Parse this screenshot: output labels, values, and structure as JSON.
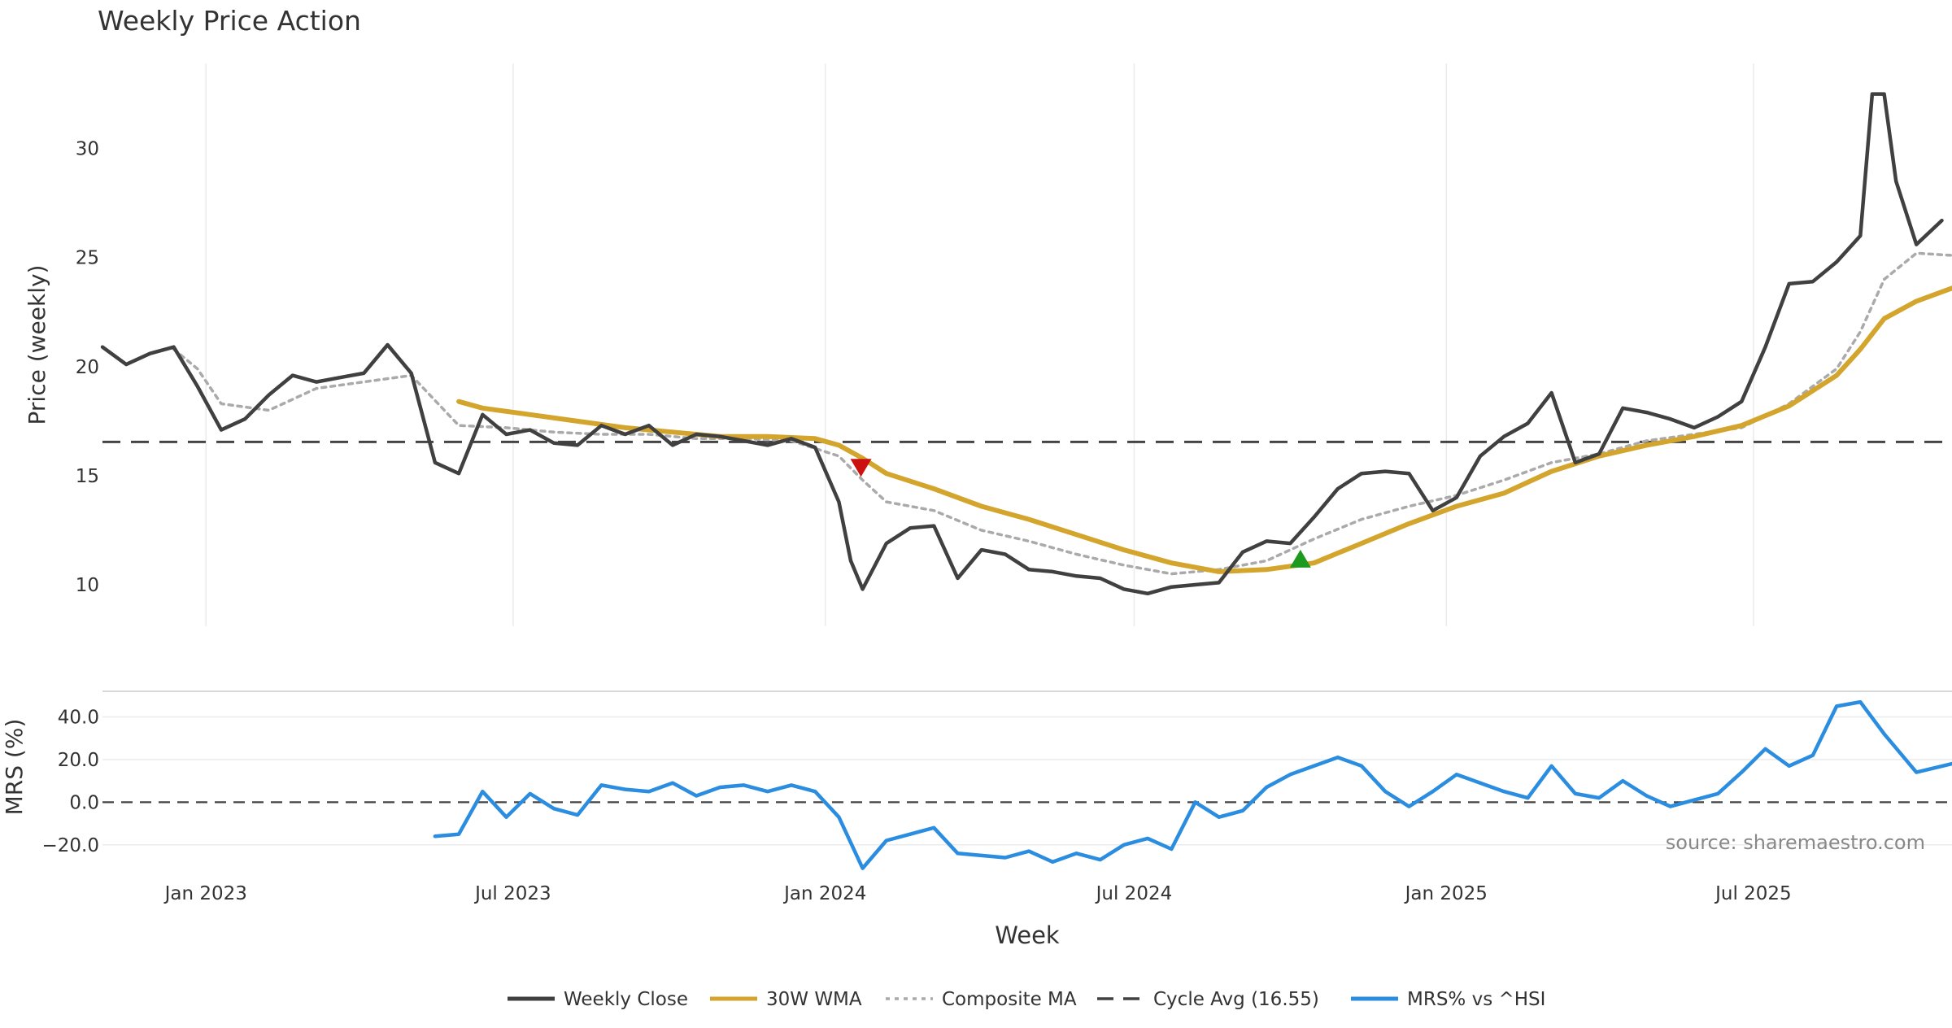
{
  "chart_data": {
    "type": "line",
    "title": "Weekly Price Action",
    "xlabel": "Week",
    "source": "source: sharemaestro.com",
    "x_ticks": [
      "Jan 2023",
      "Jul 2023",
      "Jan 2024",
      "Jul 2024",
      "Jan 2025",
      "Jul 2025"
    ],
    "x_tick_dates": [
      "2023-01-01",
      "2023-07-01",
      "2024-01-01",
      "2024-07-01",
      "2025-01-01",
      "2025-07-01"
    ],
    "x_range": [
      "2022-11-01",
      "2025-10-26"
    ],
    "price_panel": {
      "ylabel": "Price (weekly)",
      "yticks": [
        10,
        15,
        20,
        25,
        30
      ],
      "ylim": [
        8.1,
        33.9
      ],
      "grid": "x"
    },
    "mrs_panel": {
      "ylabel": "MRS (%)",
      "yticks": [
        40,
        20,
        0,
        -20
      ],
      "ytick_labels": [
        "40.0",
        "20.0",
        "0.0",
        "−20.0"
      ],
      "ylim": [
        -30,
        52
      ],
      "grid": "y"
    },
    "legend": {
      "placement": "bottom-center",
      "items": [
        {
          "label": "Weekly Close",
          "color": "#404040",
          "style": "solid"
        },
        {
          "label": "30W WMA",
          "color": "#d4a52c",
          "style": "solid"
        },
        {
          "label": "Composite MA",
          "color": "#aaaaaa",
          "style": "dotted"
        },
        {
          "label": "Cycle Avg (16.55)",
          "color": "#404040",
          "style": "dashed"
        },
        {
          "label": "MRS% vs ^HSI",
          "color": "#2b8de0",
          "style": "solid"
        }
      ]
    },
    "cycle_avg": 16.55,
    "markers": [
      {
        "type": "sell",
        "date": "2024-01-22",
        "value": 15.4,
        "color": "#cc1111"
      },
      {
        "type": "buy",
        "date": "2024-10-07",
        "value": 11.2,
        "color": "#1e9a1e"
      }
    ],
    "series": [
      {
        "name": "Weekly Close",
        "color": "#404040",
        "points": [
          [
            "2022-11-01",
            20.9
          ],
          [
            "2022-11-15",
            20.1
          ],
          [
            "2022-11-29",
            20.6
          ],
          [
            "2022-12-13",
            20.9
          ],
          [
            "2022-12-27",
            19.1
          ],
          [
            "2023-01-10",
            17.1
          ],
          [
            "2023-01-24",
            17.6
          ],
          [
            "2023-02-07",
            18.7
          ],
          [
            "2023-02-21",
            19.6
          ],
          [
            "2023-03-07",
            19.3
          ],
          [
            "2023-03-21",
            19.5
          ],
          [
            "2023-04-04",
            19.7
          ],
          [
            "2023-04-18",
            21.0
          ],
          [
            "2023-05-02",
            19.7
          ],
          [
            "2023-05-16",
            15.6
          ],
          [
            "2023-05-30",
            15.1
          ],
          [
            "2023-06-13",
            17.8
          ],
          [
            "2023-06-27",
            16.9
          ],
          [
            "2023-07-11",
            17.1
          ],
          [
            "2023-07-25",
            16.5
          ],
          [
            "2023-08-08",
            16.4
          ],
          [
            "2023-08-22",
            17.3
          ],
          [
            "2023-09-05",
            16.9
          ],
          [
            "2023-09-19",
            17.3
          ],
          [
            "2023-10-03",
            16.4
          ],
          [
            "2023-10-17",
            16.9
          ],
          [
            "2023-10-31",
            16.8
          ],
          [
            "2023-11-14",
            16.6
          ],
          [
            "2023-11-28",
            16.4
          ],
          [
            "2023-12-12",
            16.7
          ],
          [
            "2023-12-26",
            16.3
          ],
          [
            "2024-01-09",
            13.8
          ],
          [
            "2024-01-16",
            11.1
          ],
          [
            "2024-01-23",
            9.8
          ],
          [
            "2024-02-06",
            11.9
          ],
          [
            "2024-02-20",
            12.6
          ],
          [
            "2024-03-05",
            12.7
          ],
          [
            "2024-03-19",
            10.3
          ],
          [
            "2024-04-02",
            11.6
          ],
          [
            "2024-04-16",
            11.4
          ],
          [
            "2024-04-30",
            10.7
          ],
          [
            "2024-05-14",
            10.6
          ],
          [
            "2024-05-28",
            10.4
          ],
          [
            "2024-06-11",
            10.3
          ],
          [
            "2024-06-25",
            9.8
          ],
          [
            "2024-07-09",
            9.6
          ],
          [
            "2024-07-23",
            9.9
          ],
          [
            "2024-08-06",
            10.0
          ],
          [
            "2024-08-20",
            10.1
          ],
          [
            "2024-09-03",
            11.5
          ],
          [
            "2024-09-17",
            12.0
          ],
          [
            "2024-10-01",
            11.9
          ],
          [
            "2024-10-15",
            13.1
          ],
          [
            "2024-10-29",
            14.4
          ],
          [
            "2024-11-12",
            15.1
          ],
          [
            "2024-11-26",
            15.2
          ],
          [
            "2024-12-10",
            15.1
          ],
          [
            "2024-12-24",
            13.4
          ],
          [
            "2025-01-07",
            14.0
          ],
          [
            "2025-01-21",
            15.9
          ],
          [
            "2025-02-04",
            16.8
          ],
          [
            "2025-02-18",
            17.4
          ],
          [
            "2025-03-04",
            18.8
          ],
          [
            "2025-03-18",
            15.6
          ],
          [
            "2025-04-01",
            16.0
          ],
          [
            "2025-04-15",
            18.1
          ],
          [
            "2025-04-29",
            17.9
          ],
          [
            "2025-05-13",
            17.6
          ],
          [
            "2025-05-27",
            17.2
          ],
          [
            "2025-06-10",
            17.7
          ],
          [
            "2025-06-24",
            18.4
          ],
          [
            "2025-07-08",
            20.9
          ],
          [
            "2025-07-22",
            23.8
          ],
          [
            "2025-08-05",
            23.9
          ],
          [
            "2025-08-19",
            24.8
          ],
          [
            "2025-09-02",
            26.0
          ],
          [
            "2025-09-09",
            32.5
          ],
          [
            "2025-09-16",
            32.5
          ],
          [
            "2025-09-23",
            28.5
          ],
          [
            "2025-10-05",
            25.6
          ],
          [
            "2025-10-20",
            26.7
          ]
        ]
      },
      {
        "name": "30W WMA",
        "color": "#d4a52c",
        "points": [
          [
            "2023-05-30",
            18.4
          ],
          [
            "2023-06-13",
            18.1
          ],
          [
            "2023-07-11",
            17.8
          ],
          [
            "2023-08-08",
            17.5
          ],
          [
            "2023-09-05",
            17.2
          ],
          [
            "2023-10-03",
            17.0
          ],
          [
            "2023-10-31",
            16.8
          ],
          [
            "2023-11-28",
            16.8
          ],
          [
            "2023-12-26",
            16.7
          ],
          [
            "2024-01-09",
            16.4
          ],
          [
            "2024-01-23",
            15.8
          ],
          [
            "2024-02-06",
            15.1
          ],
          [
            "2024-03-05",
            14.4
          ],
          [
            "2024-04-02",
            13.6
          ],
          [
            "2024-04-30",
            13.0
          ],
          [
            "2024-05-28",
            12.3
          ],
          [
            "2024-06-25",
            11.6
          ],
          [
            "2024-07-23",
            11.0
          ],
          [
            "2024-08-20",
            10.6
          ],
          [
            "2024-09-17",
            10.7
          ],
          [
            "2024-10-15",
            11.0
          ],
          [
            "2024-11-12",
            11.9
          ],
          [
            "2024-12-10",
            12.8
          ],
          [
            "2025-01-07",
            13.6
          ],
          [
            "2025-02-04",
            14.2
          ],
          [
            "2025-03-04",
            15.2
          ],
          [
            "2025-04-01",
            15.9
          ],
          [
            "2025-04-29",
            16.4
          ],
          [
            "2025-05-27",
            16.8
          ],
          [
            "2025-06-24",
            17.3
          ],
          [
            "2025-07-22",
            18.2
          ],
          [
            "2025-08-19",
            19.6
          ],
          [
            "2025-09-02",
            20.8
          ],
          [
            "2025-09-16",
            22.2
          ],
          [
            "2025-10-05",
            23.0
          ],
          [
            "2025-10-26",
            23.6
          ]
        ]
      },
      {
        "name": "Composite MA",
        "color": "#aaaaaa",
        "points": [
          [
            "2022-12-13",
            20.8
          ],
          [
            "2022-12-27",
            19.9
          ],
          [
            "2023-01-10",
            18.3
          ],
          [
            "2023-02-07",
            18.0
          ],
          [
            "2023-03-07",
            19.0
          ],
          [
            "2023-04-04",
            19.3
          ],
          [
            "2023-05-02",
            19.6
          ],
          [
            "2023-05-30",
            17.3
          ],
          [
            "2023-06-27",
            17.2
          ],
          [
            "2023-07-25",
            17.0
          ],
          [
            "2023-08-22",
            16.9
          ],
          [
            "2023-09-19",
            16.9
          ],
          [
            "2023-10-17",
            16.7
          ],
          [
            "2023-11-14",
            16.7
          ],
          [
            "2023-12-12",
            16.6
          ],
          [
            "2024-01-09",
            15.9
          ],
          [
            "2024-01-23",
            14.8
          ],
          [
            "2024-02-06",
            13.8
          ],
          [
            "2024-03-05",
            13.4
          ],
          [
            "2024-04-02",
            12.5
          ],
          [
            "2024-04-30",
            12.0
          ],
          [
            "2024-05-28",
            11.4
          ],
          [
            "2024-06-25",
            10.9
          ],
          [
            "2024-07-23",
            10.5
          ],
          [
            "2024-08-20",
            10.7
          ],
          [
            "2024-09-17",
            11.1
          ],
          [
            "2024-10-15",
            12.1
          ],
          [
            "2024-11-12",
            13.0
          ],
          [
            "2024-12-10",
            13.6
          ],
          [
            "2025-01-07",
            14.1
          ],
          [
            "2025-02-04",
            14.8
          ],
          [
            "2025-03-04",
            15.6
          ],
          [
            "2025-04-01",
            16.0
          ],
          [
            "2025-04-29",
            16.6
          ],
          [
            "2025-05-27",
            16.9
          ],
          [
            "2025-06-24",
            17.2
          ],
          [
            "2025-07-22",
            18.3
          ],
          [
            "2025-08-19",
            19.9
          ],
          [
            "2025-09-02",
            21.6
          ],
          [
            "2025-09-16",
            24.0
          ],
          [
            "2025-10-05",
            25.2
          ],
          [
            "2025-10-26",
            25.1
          ]
        ]
      },
      {
        "name": "MRS% vs ^HSI",
        "color": "#2b8de0",
        "panel": "mrs",
        "points": [
          [
            "2023-05-16",
            -16
          ],
          [
            "2023-05-30",
            -15
          ],
          [
            "2023-06-13",
            5
          ],
          [
            "2023-06-27",
            -7
          ],
          [
            "2023-07-11",
            4
          ],
          [
            "2023-07-25",
            -3
          ],
          [
            "2023-08-08",
            -6
          ],
          [
            "2023-08-22",
            8
          ],
          [
            "2023-09-05",
            6
          ],
          [
            "2023-09-19",
            5
          ],
          [
            "2023-10-03",
            9
          ],
          [
            "2023-10-17",
            3
          ],
          [
            "2023-10-31",
            7
          ],
          [
            "2023-11-14",
            8
          ],
          [
            "2023-11-28",
            5
          ],
          [
            "2023-12-12",
            8
          ],
          [
            "2023-12-26",
            5
          ],
          [
            "2024-01-09",
            -7
          ],
          [
            "2024-01-23",
            -31
          ],
          [
            "2024-02-06",
            -18
          ],
          [
            "2024-02-20",
            -15
          ],
          [
            "2024-03-05",
            -12
          ],
          [
            "2024-03-19",
            -24
          ],
          [
            "2024-04-02",
            -25
          ],
          [
            "2024-04-16",
            -26
          ],
          [
            "2024-04-30",
            -23
          ],
          [
            "2024-05-14",
            -28
          ],
          [
            "2024-05-28",
            -24
          ],
          [
            "2024-06-11",
            -27
          ],
          [
            "2024-06-25",
            -20
          ],
          [
            "2024-07-09",
            -17
          ],
          [
            "2024-07-23",
            -22
          ],
          [
            "2024-08-06",
            0
          ],
          [
            "2024-08-20",
            -7
          ],
          [
            "2024-09-03",
            -4
          ],
          [
            "2024-09-17",
            7
          ],
          [
            "2024-10-01",
            13
          ],
          [
            "2024-10-15",
            17
          ],
          [
            "2024-10-29",
            21
          ],
          [
            "2024-11-12",
            17
          ],
          [
            "2024-11-26",
            5
          ],
          [
            "2024-12-10",
            -2
          ],
          [
            "2024-12-24",
            5
          ],
          [
            "2025-01-07",
            13
          ],
          [
            "2025-01-21",
            9
          ],
          [
            "2025-02-04",
            5
          ],
          [
            "2025-02-18",
            2
          ],
          [
            "2025-03-04",
            17
          ],
          [
            "2025-03-18",
            4
          ],
          [
            "2025-04-01",
            2
          ],
          [
            "2025-04-15",
            10
          ],
          [
            "2025-04-29",
            3
          ],
          [
            "2025-05-13",
            -2
          ],
          [
            "2025-05-27",
            1
          ],
          [
            "2025-06-10",
            4
          ],
          [
            "2025-06-24",
            14
          ],
          [
            "2025-07-08",
            25
          ],
          [
            "2025-07-22",
            17
          ],
          [
            "2025-08-05",
            22
          ],
          [
            "2025-08-19",
            45
          ],
          [
            "2025-09-02",
            47
          ],
          [
            "2025-09-16",
            32
          ],
          [
            "2025-10-05",
            14
          ],
          [
            "2025-10-26",
            18
          ]
        ]
      }
    ]
  }
}
